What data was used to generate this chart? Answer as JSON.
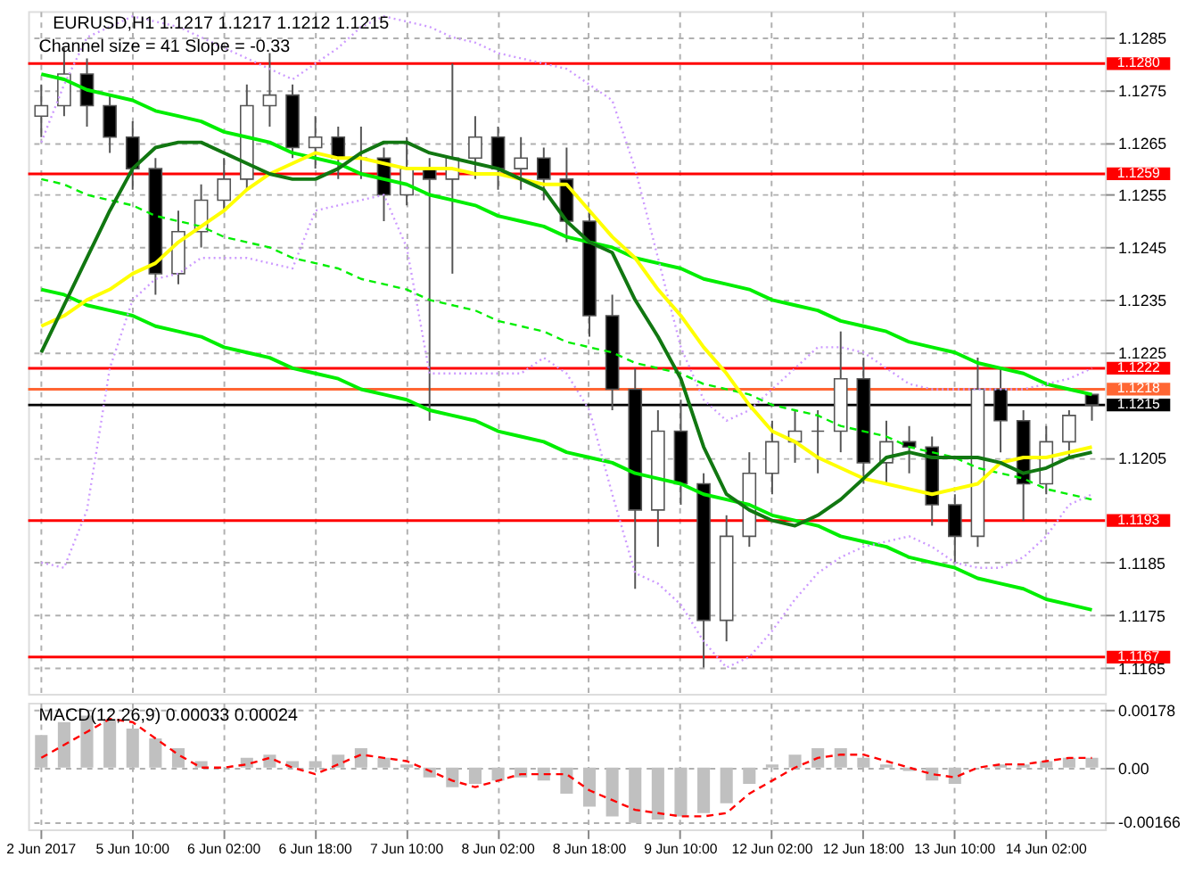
{
  "chart_data": [
    {
      "type": "candlestick",
      "annotations": [
        "EURUSD,H1  1.1217 1.1217 1.1212 1.1215",
        "Channel size = 41 Slope = -0.33"
      ],
      "categories": [
        null,
        null,
        null,
        null,
        null,
        null,
        null,
        null,
        null,
        null,
        null,
        null,
        null,
        null,
        null,
        null,
        null,
        null,
        null,
        null,
        null,
        null,
        null,
        null,
        null,
        null,
        null,
        null,
        null,
        null,
        null,
        null,
        null,
        null,
        null,
        null,
        null,
        null,
        null,
        null,
        null,
        null,
        null,
        null,
        null,
        null,
        null
      ],
      "ohlc": [
        [
          1.127,
          1.1276,
          1.1266,
          1.1272
        ],
        [
          1.1272,
          1.1283,
          1.127,
          1.1278
        ],
        [
          1.1278,
          1.1281,
          1.1268,
          1.1272
        ],
        [
          1.1272,
          1.1274,
          1.1263,
          1.1266
        ],
        [
          1.1266,
          1.1269,
          1.1256,
          1.126
        ],
        [
          1.126,
          1.1262,
          1.1236,
          1.124
        ],
        [
          1.124,
          1.1252,
          1.1238,
          1.1248
        ],
        [
          1.1248,
          1.1257,
          1.1245,
          1.1254
        ],
        [
          1.1254,
          1.1262,
          1.1252,
          1.1258
        ],
        [
          1.1258,
          1.1276,
          1.1256,
          1.1272
        ],
        [
          1.1272,
          1.1282,
          1.1268,
          1.1274
        ],
        [
          1.1274,
          1.1276,
          1.1262,
          1.1264
        ],
        [
          1.1264,
          1.127,
          1.126,
          1.1266
        ],
        [
          1.1266,
          1.1268,
          1.1258,
          1.1262
        ],
        [
          1.1262,
          1.1268,
          1.1258,
          1.1262
        ],
        [
          1.1262,
          1.1264,
          1.125,
          1.1255
        ],
        [
          1.1255,
          1.1266,
          1.1253,
          1.126
        ],
        [
          1.126,
          1.1262,
          1.1212,
          1.1258
        ],
        [
          1.1258,
          1.128,
          1.124,
          1.1262
        ],
        [
          1.1262,
          1.127,
          1.1258,
          1.1266
        ],
        [
          1.1266,
          1.1268,
          1.1256,
          1.126
        ],
        [
          1.126,
          1.1266,
          1.1256,
          1.1262
        ],
        [
          1.1262,
          1.1264,
          1.1254,
          1.1258
        ],
        [
          1.1258,
          1.1264,
          1.1246,
          1.125
        ],
        [
          1.125,
          1.1252,
          1.1228,
          1.1232
        ],
        [
          1.1232,
          1.1236,
          1.1214,
          1.1218
        ],
        [
          1.1218,
          1.1222,
          1.118,
          1.1195
        ],
        [
          1.1195,
          1.1214,
          1.1188,
          1.121
        ],
        [
          1.121,
          1.1216,
          1.1196,
          1.12
        ],
        [
          1.12,
          1.1202,
          1.1165,
          1.1174
        ],
        [
          1.1174,
          1.1194,
          1.117,
          1.119
        ],
        [
          1.119,
          1.1206,
          1.1188,
          1.1202
        ],
        [
          1.1202,
          1.1212,
          1.1198,
          1.1208
        ],
        [
          1.1208,
          1.1214,
          1.1204,
          1.121
        ],
        [
          1.121,
          1.1214,
          1.1202,
          1.121
        ],
        [
          1.121,
          1.1229,
          1.1206,
          1.122
        ],
        [
          1.122,
          1.1224,
          1.12,
          1.1204
        ],
        [
          1.1204,
          1.1212,
          1.12,
          1.1208
        ],
        [
          1.1208,
          1.1211,
          1.1202,
          1.1207
        ],
        [
          1.1207,
          1.1209,
          1.1192,
          1.1196
        ],
        [
          1.1196,
          1.1198,
          1.1185,
          1.119
        ],
        [
          1.119,
          1.1224,
          1.1188,
          1.1218
        ],
        [
          1.1218,
          1.1222,
          1.1206,
          1.1212
        ],
        [
          1.1212,
          1.1214,
          1.1193,
          1.12
        ],
        [
          1.12,
          1.1211,
          1.1198,
          1.1208
        ],
        [
          1.1208,
          1.1214,
          1.1205,
          1.1213
        ],
        [
          1.1217,
          1.1217,
          1.1212,
          1.1215
        ]
      ],
      "series": [
        {
          "type": "line",
          "color": "#00ee00",
          "values": [
            1.1278,
            1.1277,
            1.1275,
            1.1274,
            1.1273,
            1.1271,
            1.127,
            1.1269,
            1.1267,
            1.1266,
            1.1265,
            1.1263,
            1.1262,
            1.1261,
            1.1259,
            1.1258,
            1.1257,
            1.1255,
            1.1254,
            1.1253,
            1.1251,
            1.125,
            1.1249,
            1.1247,
            1.1246,
            1.1245,
            1.1243,
            1.1242,
            1.1241,
            1.1239,
            1.1238,
            1.1237,
            1.1235,
            1.1234,
            1.1233,
            1.1231,
            1.123,
            1.1229,
            1.1227,
            1.1226,
            1.1225,
            1.1223,
            1.1222,
            1.1221,
            1.1219,
            1.1218,
            1.1217
          ]
        },
        {
          "type": "line",
          "color": "#00ee00",
          "line_style": "dashed",
          "values": [
            1.1258,
            1.1257,
            1.1255,
            1.1254,
            1.1253,
            1.1251,
            1.125,
            1.1249,
            1.1247,
            1.1246,
            1.1245,
            1.1243,
            1.1242,
            1.1241,
            1.1239,
            1.1238,
            1.1237,
            1.1235,
            1.1234,
            1.1233,
            1.1231,
            1.123,
            1.1229,
            1.1227,
            1.1226,
            1.1225,
            1.1223,
            1.1222,
            1.1221,
            1.1219,
            1.1218,
            1.1217,
            1.1215,
            1.1214,
            1.1213,
            1.1211,
            1.121,
            1.1209,
            1.1207,
            1.1206,
            1.1205,
            1.1203,
            1.1202,
            1.1201,
            1.1199,
            1.1198,
            1.1197
          ]
        },
        {
          "type": "line",
          "color": "#00ee00",
          "values": [
            1.1237,
            1.1236,
            1.1234,
            1.1233,
            1.1232,
            1.123,
            1.1229,
            1.1228,
            1.1226,
            1.1225,
            1.1224,
            1.1222,
            1.1221,
            1.122,
            1.1218,
            1.1217,
            1.1216,
            1.1214,
            1.1213,
            1.1212,
            1.121,
            1.1209,
            1.1208,
            1.1206,
            1.1205,
            1.1204,
            1.1202,
            1.1201,
            1.12,
            1.1198,
            1.1197,
            1.1196,
            1.1194,
            1.1193,
            1.1192,
            1.119,
            1.1189,
            1.1188,
            1.1186,
            1.1185,
            1.1184,
            1.1182,
            1.1181,
            1.118,
            1.1178,
            1.1177,
            1.1176
          ]
        },
        {
          "type": "line",
          "color": "#cc99ff",
          "line_style": "dotted",
          "values": [
            1.1265,
            1.1276,
            1.1285,
            1.1287,
            1.1289,
            1.1288,
            1.1287,
            1.1285,
            1.1283,
            1.1281,
            1.1279,
            1.1277,
            1.128,
            1.1283,
            1.1287,
            1.1289,
            1.1288,
            1.1287,
            1.1285,
            1.1284,
            1.1282,
            1.1281,
            1.128,
            1.1279,
            1.1276,
            1.1273,
            1.126,
            1.1243,
            1.1226,
            1.1216,
            1.1212,
            1.1214,
            1.1218,
            1.1222,
            1.1226,
            1.1226,
            1.1225,
            1.1222,
            1.1219,
            1.1218,
            1.1218,
            1.1218,
            1.1218,
            1.1218,
            1.1219,
            1.122,
            1.1222
          ]
        },
        {
          "type": "line",
          "color": "#cc99ff",
          "line_style": "dotted",
          "values": [
            1.1185,
            1.1184,
            1.1195,
            1.1222,
            1.1235,
            1.1239,
            1.124,
            1.1243,
            1.1243,
            1.1243,
            1.1242,
            1.1241,
            1.1252,
            1.1253,
            1.1254,
            1.1255,
            1.1245,
            1.1221,
            1.1221,
            1.1221,
            1.1221,
            1.1221,
            1.1224,
            1.1221,
            1.1214,
            1.1198,
            1.1183,
            1.1181,
            1.1177,
            1.117,
            1.1165,
            1.1167,
            1.1172,
            1.1178,
            1.1183,
            1.1186,
            1.1188,
            1.1189,
            1.119,
            1.1188,
            1.1185,
            1.1184,
            1.1184,
            1.1186,
            1.119,
            1.1196,
            1.1198
          ]
        },
        {
          "type": "line",
          "color": "#ffff00",
          "values": [
            1.123,
            1.1232,
            1.1235,
            1.1237,
            1.124,
            1.1242,
            1.1246,
            1.1249,
            1.1252,
            1.1256,
            1.1259,
            1.1261,
            1.1263,
            1.1262,
            1.1262,
            1.1261,
            1.126,
            1.126,
            1.126,
            1.1259,
            1.1259,
            1.1258,
            1.1257,
            1.1257,
            1.1252,
            1.1247,
            1.1243,
            1.1237,
            1.1232,
            1.1226,
            1.1221,
            1.1215,
            1.121,
            1.1208,
            1.1205,
            1.1203,
            1.1201,
            1.12,
            1.1199,
            1.1198,
            1.1199,
            1.12,
            1.1204,
            1.1205,
            1.1205,
            1.1206,
            1.1207
          ]
        },
        {
          "type": "line",
          "color": "#117711",
          "values": [
            1.1225,
            1.1234,
            1.1243,
            1.1252,
            1.126,
            1.1264,
            1.1265,
            1.1265,
            1.1263,
            1.1261,
            1.1259,
            1.1258,
            1.1258,
            1.126,
            1.1263,
            1.1265,
            1.1265,
            1.1263,
            1.1262,
            1.1261,
            1.126,
            1.1258,
            1.1256,
            1.125,
            1.1246,
            1.1244,
            1.1235,
            1.1228,
            1.122,
            1.1207,
            1.1198,
            1.1195,
            1.1193,
            1.1192,
            1.1194,
            1.1197,
            1.1201,
            1.1205,
            1.1206,
            1.1205,
            1.1205,
            1.1205,
            1.1204,
            1.1202,
            1.1203,
            1.1205,
            1.1206
          ]
        }
      ],
      "ref_lines": [
        {
          "axis": "y",
          "value": 1.128,
          "label": "1.1280",
          "color": "#ff0000"
        },
        {
          "axis": "y",
          "value": 1.1259,
          "label": "1.1259",
          "color": "#ff0000"
        },
        {
          "axis": "y",
          "value": 1.1222,
          "label": "1.1222",
          "color": "#ff0000"
        },
        {
          "axis": "y",
          "value": 1.1218,
          "label": "1.1218",
          "color": "#ff6633"
        },
        {
          "axis": "y",
          "value": 1.1215,
          "label": "1.1215",
          "color": "#000000"
        },
        {
          "axis": "y",
          "value": 1.1193,
          "label": "1.1193",
          "color": "#ff0000"
        },
        {
          "axis": "y",
          "value": 1.1167,
          "label": "1.1167",
          "color": "#ff0000"
        }
      ],
      "ylim": [
        1.116,
        1.129
      ],
      "yticks": [
        1.1165,
        1.1175,
        1.1185,
        1.1205,
        1.1225,
        1.1235,
        1.1245,
        1.1255,
        1.1265,
        1.1275,
        1.1285
      ],
      "grid": true,
      "tick_labels": "y"
    },
    {
      "type": "bar",
      "annotations": [
        "MACD(12,26,9) 0.00033 0.00024"
      ],
      "categories": [
        "2 Jun 2017",
        null,
        null,
        null,
        "5 Jun 10:00",
        null,
        null,
        null,
        "6 Jun 02:00",
        null,
        null,
        null,
        "6 Jun 18:00",
        null,
        null,
        null,
        "7 Jun 10:00",
        null,
        null,
        null,
        "8 Jun 02:00",
        null,
        null,
        null,
        "8 Jun 18:00",
        null,
        null,
        null,
        "9 Jun 10:00",
        null,
        null,
        null,
        "12 Jun 02:00",
        null,
        null,
        null,
        "12 Jun 18:00",
        null,
        null,
        null,
        "13 Jun 10:00",
        null,
        null,
        null,
        "14 Jun 02:00",
        null,
        null
      ],
      "series": [
        {
          "type": "bar",
          "color": "#c0c0c0",
          "values": [
            0.001,
            0.0014,
            0.0016,
            0.0015,
            0.0012,
            0.0009,
            0.0006,
            0.0002,
            0.0,
            0.0003,
            0.0004,
            0.0002,
            0.0002,
            0.0004,
            0.0006,
            0.0003,
            0.0001,
            -0.0003,
            -0.0006,
            -0.0005,
            -0.0004,
            -0.0003,
            -0.0004,
            -0.0008,
            -0.0012,
            -0.0015,
            -0.0017,
            -0.0016,
            -0.0015,
            -0.0014,
            -0.0011,
            -0.0005,
            0.0001,
            0.0004,
            0.0006,
            0.0006,
            0.0003,
            0.0001,
            -0.0001,
            -0.0004,
            -0.0005,
            0.0,
            0.0001,
            0.0001,
            0.0002,
            0.0003,
            0.0003
          ]
        },
        {
          "type": "line",
          "color": "#ff0000",
          "line_style": "dashed",
          "values": [
            0.0003,
            0.0007,
            0.0011,
            0.0015,
            0.0014,
            0.0009,
            0.0004,
            0.0,
            0.0,
            0.0001,
            0.0003,
            0.0,
            -0.0002,
            0.0001,
            0.0004,
            0.0003,
            0.0002,
            -0.0001,
            -0.0004,
            -0.0006,
            -0.0004,
            -0.0002,
            -0.0002,
            -0.0002,
            -0.0007,
            -0.001,
            -0.0013,
            -0.0014,
            -0.0015,
            -0.0015,
            -0.0014,
            -0.0008,
            -0.0004,
            0.0,
            0.0003,
            0.0004,
            0.0004,
            0.0002,
            0.0,
            -0.0002,
            -0.0003,
            0.0,
            0.0001,
            0.0001,
            0.0002,
            0.0003,
            0.0003
          ]
        }
      ],
      "ylim": [
        -0.0019,
        0.002
      ],
      "yticks": [
        -0.00166,
        {
          "value": 0,
          "label": "0.00"
        },
        0.00178
      ],
      "grid": true
    }
  ]
}
